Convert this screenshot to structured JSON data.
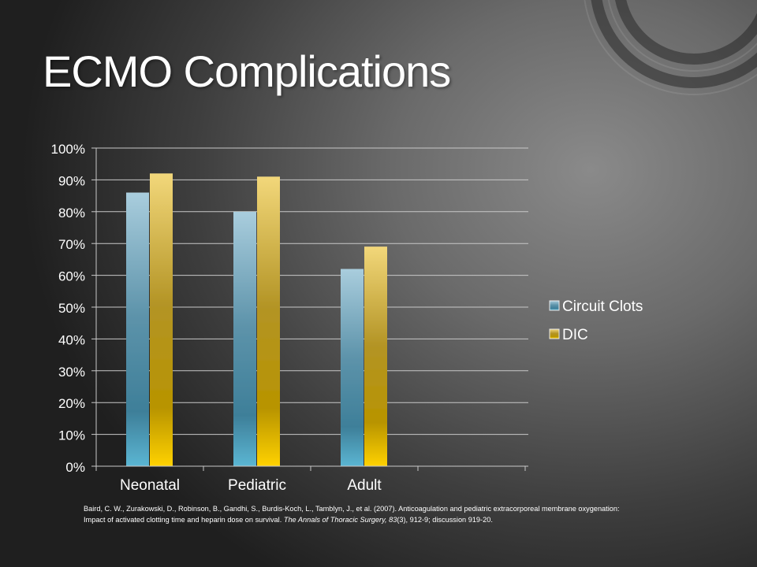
{
  "slide": {
    "title": "ECMO Complications"
  },
  "chart_data": {
    "type": "bar",
    "title": "",
    "xlabel": "",
    "ylabel": "",
    "categories": [
      "Neonatal",
      "Pediatric",
      "Adult"
    ],
    "series": [
      {
        "name": "Circuit Clots",
        "values": [
          0.86,
          0.8,
          0.62
        ],
        "color": "#4a8fb0"
      },
      {
        "name": "DIC",
        "values": [
          0.92,
          0.91,
          0.69
        ],
        "color": "#d4ad1a"
      }
    ],
    "ylim": [
      0,
      1
    ],
    "yticks": [
      "0%",
      "10%",
      "20%",
      "30%",
      "40%",
      "50%",
      "60%",
      "70%",
      "80%",
      "90%",
      "100%"
    ],
    "grid": true,
    "legend_position": "right"
  },
  "citation": {
    "part1": "Baird, C. W., Zurakowski, D., Robinson, B., Gandhi, S., Burdis-Koch, L., Tamblyn, J., et al. (2007). Anticoagulation and pediatric extracorporeal membrane oxygenation: Impact of activated clotting time and heparin dose on survival.",
    "journal": "The Annals of Thoracic Surgery, 83",
    "part2": "(3), 912-9; discussion 919-20."
  }
}
